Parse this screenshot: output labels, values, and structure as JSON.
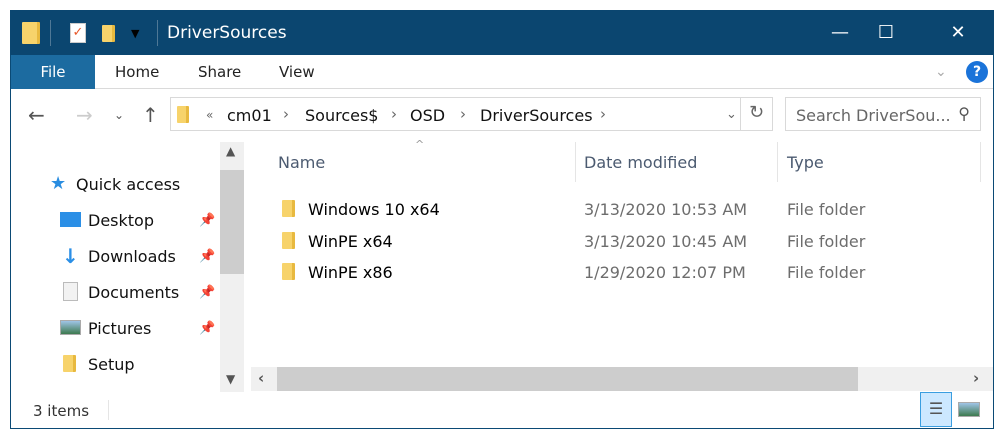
{
  "window": {
    "title": "DriverSources",
    "minimize": "—",
    "maximize": "☐",
    "close": "✕"
  },
  "ribbon": {
    "tabs": [
      "File",
      "Home",
      "Share",
      "View"
    ],
    "help": "?"
  },
  "address": {
    "overflow": "«",
    "crumbs": [
      "cm01",
      "Sources$",
      "OSD",
      "DriverSources"
    ]
  },
  "search": {
    "placeholder": "Search DriverSou..."
  },
  "nav": {
    "items": [
      {
        "label": "Quick access",
        "icon": "star-icon",
        "pinned": false
      },
      {
        "label": "Desktop",
        "icon": "desktop-icon",
        "pinned": true
      },
      {
        "label": "Downloads",
        "icon": "download-icon",
        "pinned": true
      },
      {
        "label": "Documents",
        "icon": "documents-icon",
        "pinned": true
      },
      {
        "label": "Pictures",
        "icon": "pictures-icon",
        "pinned": true
      },
      {
        "label": "Setup",
        "icon": "folder-icon",
        "pinned": false
      }
    ]
  },
  "columns": [
    "Name",
    "Date modified",
    "Type"
  ],
  "files": [
    {
      "name": "Windows 10 x64",
      "date": "3/13/2020 10:53 AM",
      "type": "File folder"
    },
    {
      "name": "WinPE x64",
      "date": "3/13/2020 10:45 AM",
      "type": "File folder"
    },
    {
      "name": "WinPE x86",
      "date": "1/29/2020 12:07 PM",
      "type": "File folder"
    }
  ],
  "status": {
    "items": "3 items"
  },
  "colors": {
    "titlebar": "#0b4670",
    "file_tab": "#1c6ba0",
    "accent": "#0078d7"
  }
}
